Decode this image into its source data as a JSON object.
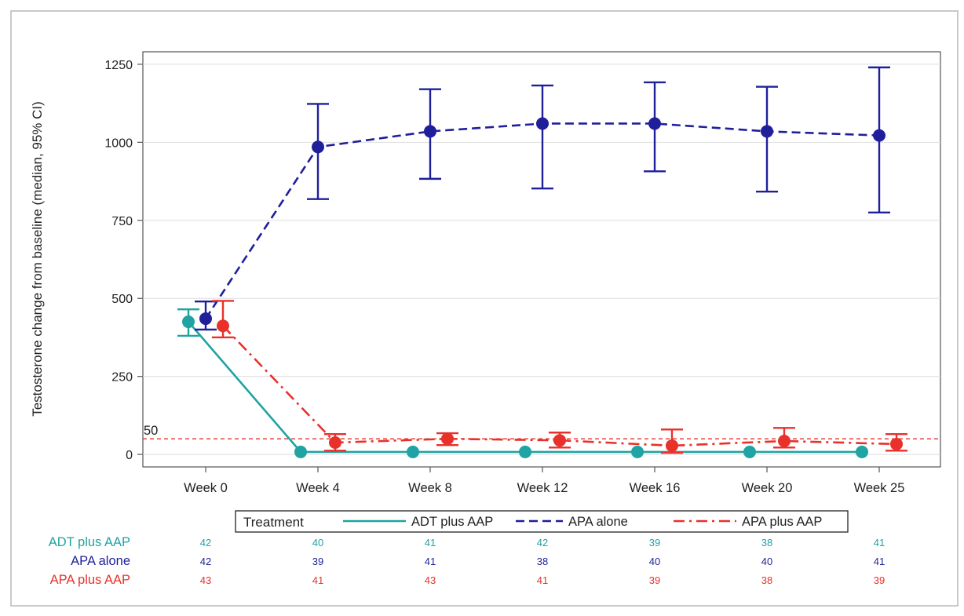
{
  "chart_data": {
    "type": "line",
    "title": "",
    "xlabel": "",
    "ylabel": "Testosterone change from baseline (median, 95% CI)",
    "categories": [
      "Week 0",
      "Week 4",
      "Week 8",
      "Week 12",
      "Week 16",
      "Week 20",
      "Week 25"
    ],
    "ylim": [
      -40,
      1290
    ],
    "yticks": [
      0,
      250,
      500,
      750,
      1000,
      1250
    ],
    "grid": true,
    "reference_line": {
      "value": 50,
      "label": "50",
      "color": "#e8312a"
    },
    "legend": {
      "title": "Treatment",
      "placement": "bottom",
      "entries": [
        "ADT plus AAP",
        "APA alone",
        "APA plus AAP"
      ]
    },
    "series": [
      {
        "name": "ADT plus AAP",
        "color": "#1fa3a3",
        "dash": "solid",
        "values": [
          425,
          8,
          8,
          8,
          8,
          8,
          8
        ],
        "ci_low": [
          380,
          null,
          null,
          null,
          null,
          null,
          null
        ],
        "ci_high": [
          465,
          null,
          null,
          null,
          null,
          null,
          null
        ],
        "n_at_risk": [
          "42",
          "40",
          "41",
          "42",
          "39",
          "38",
          "41"
        ]
      },
      {
        "name": "APA alone",
        "color": "#1f1f9c",
        "dash": "dashed",
        "values": [
          435,
          985,
          1035,
          1060,
          1060,
          1035,
          1022
        ],
        "ci_low": [
          400,
          818,
          883,
          852,
          907,
          842,
          775
        ],
        "ci_high": [
          490,
          1123,
          1170,
          1182,
          1192,
          1178,
          1240
        ],
        "n_at_risk": [
          "42",
          "39",
          "41",
          "38",
          "40",
          "40",
          "41"
        ]
      },
      {
        "name": "APA plus AAP",
        "color": "#e8312a",
        "dash": "dashdot",
        "values": [
          412,
          38,
          50,
          45,
          28,
          43,
          33
        ],
        "ci_low": [
          375,
          12,
          30,
          22,
          5,
          22,
          12
        ],
        "ci_high": [
          492,
          65,
          68,
          70,
          80,
          85,
          65
        ],
        "n_at_risk": [
          "43",
          "41",
          "43",
          "41",
          "39",
          "38",
          "39"
        ]
      }
    ]
  }
}
